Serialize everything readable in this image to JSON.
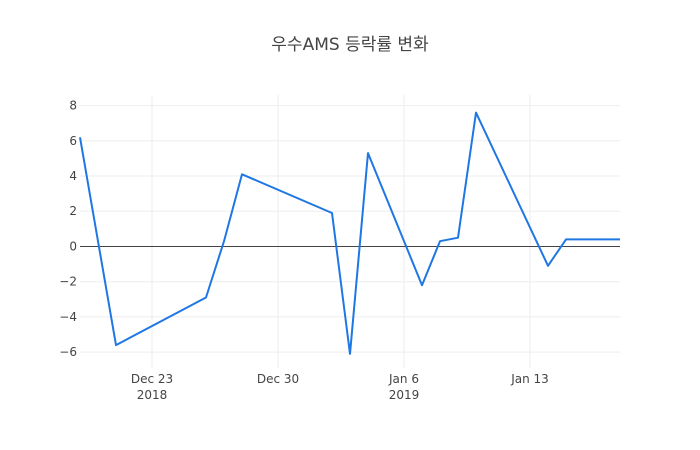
{
  "chart_data": {
    "type": "line",
    "title": "우수AMS 등락률 변화",
    "xlabel": "",
    "ylabel": "",
    "x_ticks": [
      {
        "date": "2018-12-23",
        "label": "Dec 23",
        "sublabel": "2018"
      },
      {
        "date": "2018-12-30",
        "label": "Dec 30",
        "sublabel": ""
      },
      {
        "date": "2019-01-06",
        "label": "Jan 6",
        "sublabel": "2019"
      },
      {
        "date": "2019-01-13",
        "label": "Jan 13",
        "sublabel": ""
      }
    ],
    "y_ticks": [
      -6,
      -4,
      -2,
      0,
      2,
      4,
      6,
      8
    ],
    "xlim": [
      "2018-12-19",
      "2019-01-18"
    ],
    "ylim": [
      -6.9,
      8.6
    ],
    "grid": true,
    "series": [
      {
        "color": "#1f77e4",
        "points": [
          {
            "x": "2018-12-19",
            "y": 6.2
          },
          {
            "x": "2018-12-21",
            "y": -5.6
          },
          {
            "x": "2018-12-26",
            "y": -2.9
          },
          {
            "x": "2018-12-27",
            "y": 0.3
          },
          {
            "x": "2018-12-28",
            "y": 4.1
          },
          {
            "x": "2019-01-02",
            "y": 1.9
          },
          {
            "x": "2019-01-03",
            "y": -6.1
          },
          {
            "x": "2019-01-04",
            "y": 5.3
          },
          {
            "x": "2019-01-07",
            "y": -2.2
          },
          {
            "x": "2019-01-08",
            "y": 0.3
          },
          {
            "x": "2019-01-09",
            "y": 0.5
          },
          {
            "x": "2019-01-10",
            "y": 7.6
          },
          {
            "x": "2019-01-14",
            "y": -1.1
          },
          {
            "x": "2019-01-15",
            "y": 0.4
          },
          {
            "x": "2019-01-16",
            "y": 0.4
          },
          {
            "x": "2019-01-17",
            "y": 0.4
          },
          {
            "x": "2019-01-18",
            "y": 0.4
          }
        ]
      }
    ]
  }
}
